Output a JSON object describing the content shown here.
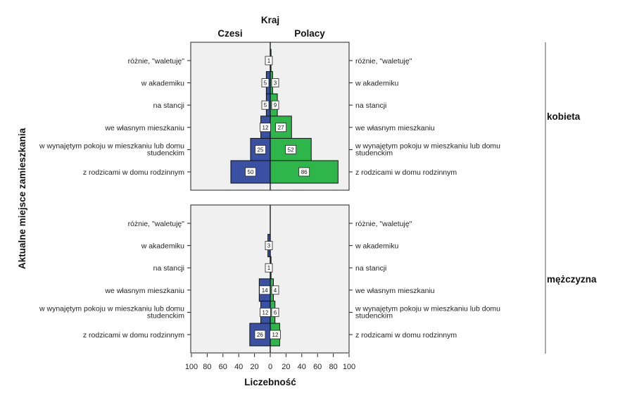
{
  "chart_data": {
    "type": "bar",
    "subtype": "population-pyramid",
    "title": "Kraj",
    "columns": [
      "Czesi",
      "Polacy"
    ],
    "xlabel": "Liczebność",
    "ylabel": "Aktualne miejsce zamieszkania",
    "xlim": [
      0,
      100
    ],
    "xticks": [
      100,
      80,
      60,
      40,
      20,
      0,
      20,
      40,
      60,
      80,
      100
    ],
    "categories": [
      [
        "różnie, \"waletuję\""
      ],
      [
        "w akademiku"
      ],
      [
        "na stancji"
      ],
      [
        "we własnym mieszkaniu"
      ],
      [
        "w wynajętym pokoju w  mieszkaniu lub domu",
        "studenckim"
      ],
      [
        "z rodzicami w domu rodzinnym"
      ]
    ],
    "panels": [
      {
        "name": "kobieta",
        "series": [
          {
            "name": "Czesi",
            "color": "#3950a3",
            "values": [
              0,
              5,
              5,
              12,
              25,
              50
            ],
            "labels": [
              "",
              "5",
              "5",
              "12",
              "25",
              "50"
            ]
          },
          {
            "name": "Polacy",
            "color": "#2fb64a",
            "values": [
              1,
              3,
              9,
              27,
              52,
              86
            ],
            "labels": [
              "1",
              "3",
              "9",
              "27",
              "52",
              "86"
            ]
          }
        ]
      },
      {
        "name": "mężczyzna",
        "series": [
          {
            "name": "Czesi",
            "color": "#3950a3",
            "values": [
              0,
              3,
              0,
              14,
              12,
              26
            ],
            "labels": [
              "",
              "3",
              "",
              "14",
              "12",
              "26"
            ]
          },
          {
            "name": "Polacy",
            "color": "#2fb64a",
            "values": [
              0,
              0,
              1,
              4,
              6,
              12
            ],
            "labels": [
              "",
              "",
              "1",
              "4",
              "6",
              "12"
            ]
          }
        ]
      }
    ],
    "grid": false,
    "background": "#f0f0f0"
  }
}
